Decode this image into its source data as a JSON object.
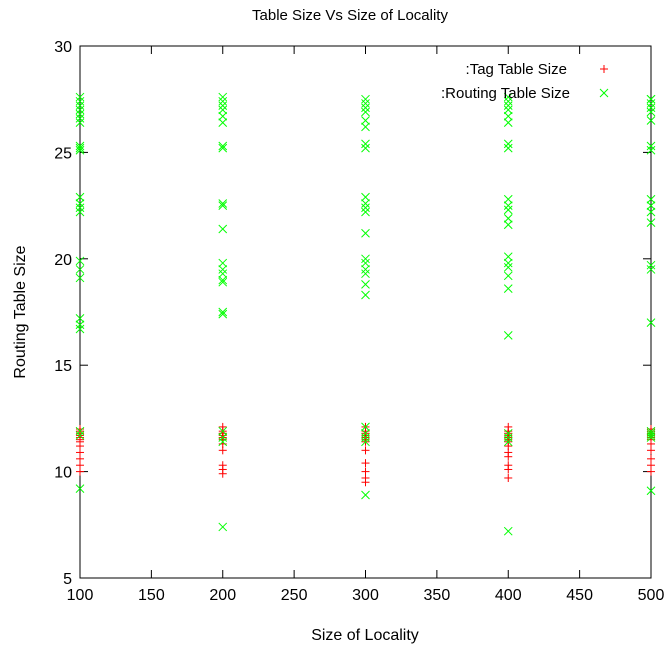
{
  "chart_data": {
    "type": "scatter",
    "title": "Table Size Vs Size of Locality",
    "xlabel": "Size of Locality",
    "ylabel": "Routing Table Size",
    "xlim": [
      100,
      500
    ],
    "ylim": [
      5,
      30
    ],
    "xticks": [
      "100",
      "150",
      "200",
      "250",
      "300",
      "350",
      "400",
      "450",
      "500"
    ],
    "yticks": [
      "5",
      "10",
      "15",
      "20",
      "25",
      "30"
    ],
    "grid": false,
    "legend_position": "top-right",
    "series": [
      {
        "name": ":Tag Table Size",
        "marker": "plus",
        "color": "#ff0000",
        "x": [
          100,
          100,
          100,
          100,
          100,
          100,
          100,
          100,
          100,
          100,
          100,
          100,
          200,
          200,
          200,
          200,
          200,
          200,
          200,
          200,
          200,
          200,
          200,
          300,
          300,
          300,
          300,
          300,
          300,
          300,
          300,
          300,
          300,
          300,
          300,
          400,
          400,
          400,
          400,
          400,
          400,
          400,
          400,
          400,
          400,
          400,
          400,
          400,
          500,
          500,
          500,
          500,
          500,
          500,
          500,
          500,
          500,
          500,
          500
        ],
        "y": [
          12.0,
          11.9,
          11.8,
          11.7,
          11.6,
          11.5,
          11.4,
          11.2,
          10.9,
          10.6,
          10.3,
          10.0,
          12.1,
          11.9,
          11.8,
          11.7,
          11.6,
          11.5,
          11.3,
          11.0,
          10.3,
          10.1,
          9.9,
          12.1,
          11.9,
          11.8,
          11.7,
          11.6,
          11.5,
          11.4,
          11.0,
          10.4,
          10.0,
          9.7,
          9.5,
          12.1,
          11.9,
          11.8,
          11.7,
          11.6,
          11.5,
          11.4,
          11.2,
          10.9,
          10.7,
          10.3,
          10.1,
          9.7,
          12.0,
          11.9,
          11.8,
          11.7,
          11.6,
          11.5,
          11.3,
          11.0,
          10.6,
          10.3,
          10.0
        ]
      },
      {
        "name": ":Routing Table Size",
        "marker": "cross",
        "color": "#00ff00",
        "x": [
          100,
          100,
          100,
          100,
          100,
          100,
          100,
          100,
          100,
          100,
          100,
          100,
          100,
          100,
          100,
          100,
          100,
          100,
          100,
          100,
          100,
          100,
          100,
          200,
          200,
          200,
          200,
          200,
          200,
          200,
          200,
          200,
          200,
          200,
          200,
          200,
          200,
          200,
          200,
          200,
          200,
          200,
          200,
          200,
          200,
          300,
          300,
          300,
          300,
          300,
          300,
          300,
          300,
          300,
          300,
          300,
          300,
          300,
          300,
          300,
          300,
          300,
          300,
          300,
          300,
          300,
          300,
          300,
          300,
          400,
          400,
          400,
          400,
          400,
          400,
          400,
          400,
          400,
          400,
          400,
          400,
          400,
          400,
          400,
          400,
          400,
          400,
          400,
          400,
          400,
          400,
          400,
          500,
          500,
          500,
          500,
          500,
          500,
          500,
          500,
          500,
          500,
          500,
          500,
          500,
          500,
          500,
          500,
          500,
          500,
          500,
          500
        ],
        "y": [
          27.6,
          27.4,
          27.2,
          27.0,
          26.8,
          26.6,
          26.4,
          25.3,
          25.2,
          25.1,
          22.9,
          22.6,
          22.4,
          22.2,
          19.9,
          19.5,
          19.1,
          17.2,
          16.9,
          16.7,
          11.9,
          11.7,
          9.2,
          27.6,
          27.4,
          27.2,
          27.0,
          26.7,
          26.4,
          25.3,
          25.2,
          22.6,
          22.5,
          21.4,
          19.8,
          19.5,
          19.3,
          19.0,
          18.9,
          17.5,
          17.4,
          11.9,
          11.6,
          11.4,
          7.4,
          27.5,
          27.3,
          27.1,
          26.9,
          26.5,
          26.2,
          25.4,
          25.2,
          22.9,
          22.6,
          22.4,
          22.2,
          21.2,
          20.0,
          19.8,
          19.5,
          19.3,
          18.8,
          18.3,
          12.1,
          11.8,
          11.6,
          11.4,
          8.9,
          27.6,
          27.4,
          27.2,
          27.0,
          26.7,
          26.4,
          25.4,
          25.2,
          22.8,
          22.5,
          22.3,
          21.9,
          21.6,
          20.1,
          19.8,
          19.6,
          19.2,
          18.6,
          16.4,
          11.8,
          11.6,
          11.4,
          7.2,
          27.5,
          27.3,
          27.1,
          26.9,
          26.5,
          25.3,
          25.1,
          22.8,
          22.5,
          22.2,
          21.7,
          19.7,
          19.5,
          17.0,
          11.9,
          11.8,
          11.7,
          11.6,
          9.1,
          27.5
        ]
      }
    ]
  }
}
